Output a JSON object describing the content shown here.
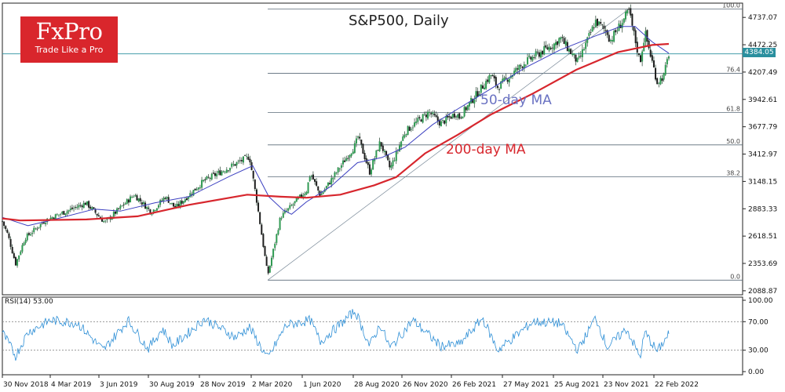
{
  "logo": {
    "name": "FxPro",
    "slogan": "Trade Like a Pro"
  },
  "chart_data": [
    {
      "type": "candlestick",
      "title": "S&P500, Daily",
      "ylim": [
        2050,
        4860
      ],
      "y_ticks": [
        4737.07,
        4472.25,
        4207.49,
        3942.61,
        3677.79,
        3412.97,
        3148.15,
        2883.33,
        2618.51,
        2353.69,
        2088.87
      ],
      "x_tick_labels": [
        "30 Nov 2018",
        "4 Mar 2019",
        "3 Jun 2019",
        "30 Aug 2019",
        "28 Nov 2019",
        "2 Mar 2020",
        "1 Jun 2020",
        "28 Aug 2020",
        "26 Nov 2020",
        "26 Feb 2021",
        "27 May 2021",
        "25 Aug 2021",
        "23 Nov 2021",
        "22 Feb 2022"
      ],
      "current_price": "4384.05",
      "price_path": [
        [
          "2018-11-30",
          2760
        ],
        [
          "2018-12-10",
          2630
        ],
        [
          "2018-12-24",
          2350
        ],
        [
          "2019-01-10",
          2600
        ],
        [
          "2019-02-15",
          2770
        ],
        [
          "2019-03-04",
          2810
        ],
        [
          "2019-04-30",
          2940
        ],
        [
          "2019-06-03",
          2750
        ],
        [
          "2019-07-26",
          3020
        ],
        [
          "2019-08-26",
          2850
        ],
        [
          "2019-09-20",
          3000
        ],
        [
          "2019-10-08",
          2890
        ],
        [
          "2019-11-28",
          3150
        ],
        [
          "2020-01-15",
          3290
        ],
        [
          "2020-02-19",
          3390
        ],
        [
          "2020-03-02",
          3000
        ],
        [
          "2020-03-23",
          2237
        ],
        [
          "2020-04-15",
          2800
        ],
        [
          "2020-06-01",
          3060
        ],
        [
          "2020-06-08",
          3230
        ],
        [
          "2020-06-26",
          3010
        ],
        [
          "2020-08-28",
          3500
        ],
        [
          "2020-09-02",
          3580
        ],
        [
          "2020-09-23",
          3240
        ],
        [
          "2020-10-12",
          3530
        ],
        [
          "2020-10-30",
          3270
        ],
        [
          "2020-11-26",
          3630
        ],
        [
          "2021-01-08",
          3820
        ],
        [
          "2021-01-29",
          3710
        ],
        [
          "2021-02-26",
          3810
        ],
        [
          "2021-03-04",
          3770
        ],
        [
          "2021-04-30",
          4180
        ],
        [
          "2021-05-12",
          4060
        ],
        [
          "2021-06-30",
          4300
        ],
        [
          "2021-08-25",
          4490
        ],
        [
          "2021-09-02",
          4540
        ],
        [
          "2021-10-04",
          4300
        ],
        [
          "2021-11-05",
          4700
        ],
        [
          "2021-11-26",
          4590
        ],
        [
          "2021-12-01",
          4510
        ],
        [
          "2022-01-04",
          4797
        ],
        [
          "2022-01-24",
          4300
        ],
        [
          "2022-02-02",
          4590
        ],
        [
          "2022-02-24",
          4110
        ],
        [
          "2022-03-08",
          4170
        ],
        [
          "2022-03-17",
          4384
        ]
      ],
      "series": [
        {
          "name": "50-day MA",
          "color": "#3b3fc0",
          "points": [
            [
              "2018-11-30",
              2800
            ],
            [
              "2019-01-15",
              2720
            ],
            [
              "2019-03-04",
              2780
            ],
            [
              "2019-05-15",
              2880
            ],
            [
              "2019-07-01",
              2860
            ],
            [
              "2019-09-01",
              2940
            ],
            [
              "2019-11-01",
              3000
            ],
            [
              "2020-01-15",
              3200
            ],
            [
              "2020-02-25",
              3300
            ],
            [
              "2020-03-25",
              3000
            ],
            [
              "2020-04-20",
              2870
            ],
            [
              "2020-05-05",
              2830
            ],
            [
              "2020-06-01",
              2950
            ],
            [
              "2020-07-15",
              3100
            ],
            [
              "2020-09-01",
              3330
            ],
            [
              "2020-10-15",
              3380
            ],
            [
              "2020-11-26",
              3480
            ],
            [
              "2021-01-15",
              3700
            ],
            [
              "2021-03-01",
              3850
            ],
            [
              "2021-05-01",
              4050
            ],
            [
              "2021-07-01",
              4250
            ],
            [
              "2021-09-01",
              4420
            ],
            [
              "2021-11-01",
              4550
            ],
            [
              "2021-12-20",
              4650
            ],
            [
              "2022-01-15",
              4650
            ],
            [
              "2022-02-15",
              4500
            ],
            [
              "2022-03-17",
              4390
            ]
          ]
        },
        {
          "name": "200-day MA",
          "color": "#d7262d",
          "points": [
            [
              "2018-11-30",
              2790
            ],
            [
              "2019-01-01",
              2770
            ],
            [
              "2019-05-01",
              2780
            ],
            [
              "2019-08-01",
              2810
            ],
            [
              "2019-11-01",
              2920
            ],
            [
              "2020-02-15",
              3020
            ],
            [
              "2020-04-15",
              3000
            ],
            [
              "2020-06-01",
              2990
            ],
            [
              "2020-08-01",
              3020
            ],
            [
              "2020-10-01",
              3110
            ],
            [
              "2020-11-10",
              3190
            ],
            [
              "2021-01-01",
              3420
            ],
            [
              "2021-03-01",
              3600
            ],
            [
              "2021-05-01",
              3800
            ],
            [
              "2021-07-15",
              4000
            ],
            [
              "2021-10-01",
              4230
            ],
            [
              "2021-12-15",
              4400
            ],
            [
              "2022-02-15",
              4470
            ],
            [
              "2022-03-17",
              4480
            ]
          ]
        }
      ],
      "fibonacci": {
        "from": [
          "2020-03-23",
          2192
        ],
        "to": [
          "2022-01-04",
          4818
        ],
        "levels": [
          {
            "label": "100.0",
            "value": 4818
          },
          {
            "label": "76.4",
            "value": 4196
          },
          {
            "label": "61.8",
            "value": 3815
          },
          {
            "label": "50.0",
            "value": 3502
          },
          {
            "label": "38.2",
            "value": 3193
          },
          {
            "label": "0.0",
            "value": 2192
          }
        ]
      },
      "annotations": {
        "ma50": "50-day MA",
        "ma200": "200-day MA"
      }
    },
    {
      "type": "line",
      "label": "RSI(14) 53.00",
      "ylim": [
        0,
        100
      ],
      "y_ticks": [
        100.0,
        70.0,
        30.0,
        0.0
      ],
      "y_tick_labels": [
        "100.00",
        "70.00",
        "30.00",
        "0.00"
      ],
      "reference_lines": [
        70,
        30
      ],
      "series": [
        {
          "name": "RSI(14)",
          "color": "#2e8fd6",
          "last_value": 53.0,
          "points": [
            [
              "2018-11-30",
              55
            ],
            [
              "2018-12-24",
              22
            ],
            [
              "2019-01-15",
              55
            ],
            [
              "2019-02-25",
              72
            ],
            [
              "2019-04-15",
              68
            ],
            [
              "2019-05-31",
              30
            ],
            [
              "2019-07-15",
              72
            ],
            [
              "2019-08-20",
              32
            ],
            [
              "2019-09-15",
              60
            ],
            [
              "2019-10-04",
              36
            ],
            [
              "2019-11-30",
              74
            ],
            [
              "2020-01-25",
              48
            ],
            [
              "2020-02-19",
              62
            ],
            [
              "2020-03-23",
              18
            ],
            [
              "2020-04-25",
              65
            ],
            [
              "2020-06-08",
              72
            ],
            [
              "2020-06-26",
              42
            ],
            [
              "2020-08-28",
              85
            ],
            [
              "2020-09-23",
              36
            ],
            [
              "2020-10-12",
              66
            ],
            [
              "2020-10-30",
              33
            ],
            [
              "2020-12-10",
              72
            ],
            [
              "2021-01-29",
              36
            ],
            [
              "2021-03-04",
              38
            ],
            [
              "2021-04-15",
              75
            ],
            [
              "2021-05-12",
              30
            ],
            [
              "2021-07-15",
              70
            ],
            [
              "2021-09-02",
              68
            ],
            [
              "2021-10-04",
              30
            ],
            [
              "2021-11-05",
              76
            ],
            [
              "2021-11-26",
              34
            ],
            [
              "2021-12-31",
              60
            ],
            [
              "2022-01-24",
              20
            ],
            [
              "2022-02-02",
              55
            ],
            [
              "2022-02-24",
              28
            ],
            [
              "2022-03-17",
              53
            ]
          ]
        }
      ]
    }
  ]
}
